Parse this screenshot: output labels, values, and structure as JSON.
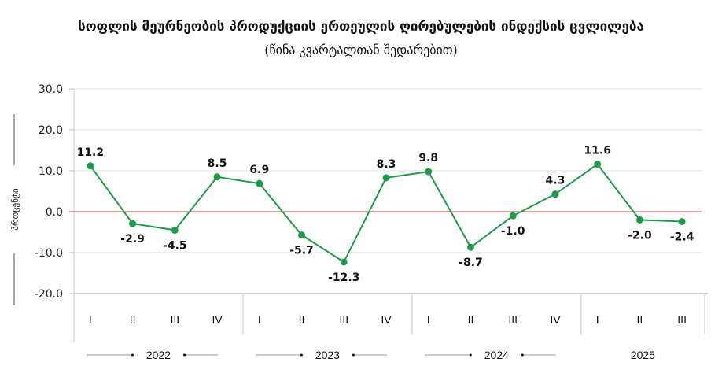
{
  "chart_data": {
    "type": "line",
    "title": "სოფლის მეურნეობის პროდუქციის ერთეულის ღირებულების ინდექსის ცვლილება",
    "subtitle": "(წინა  კვარტალთან შედარებით)",
    "ylabel": "პროცენტი",
    "ylim": [
      -20,
      30
    ],
    "yticks": [
      "30.0",
      "20.0",
      "10.0",
      "0.0",
      "-10.0",
      "-20.0"
    ],
    "ytick_values": [
      30,
      20,
      10,
      0,
      -10,
      -20
    ],
    "categories": [
      "I",
      "II",
      "III",
      "IV",
      "I",
      "II",
      "III",
      "IV",
      "I",
      "II",
      "III",
      "IV",
      "I",
      "II",
      "III"
    ],
    "years": [
      "2022",
      "2023",
      "2024",
      "2025"
    ],
    "series": [
      {
        "name": "ინდექსის ცვლილება",
        "color": "#1e9a4a",
        "values": [
          11.2,
          -2.9,
          -4.5,
          8.5,
          6.9,
          -5.7,
          -12.3,
          8.3,
          9.8,
          -8.7,
          -1.0,
          4.3,
          11.6,
          -2.0,
          -2.4
        ],
        "labels": [
          "11.2",
          "-2.9",
          "-4.5",
          "8.5",
          "6.9",
          "-5.7",
          "-12.3",
          "8.3",
          "9.8",
          "-8.7",
          "-1.0",
          "4.3",
          "11.6",
          "-2.0",
          "-2.4"
        ]
      }
    ],
    "zero_line_color": "#b03a3a",
    "grid": true
  }
}
